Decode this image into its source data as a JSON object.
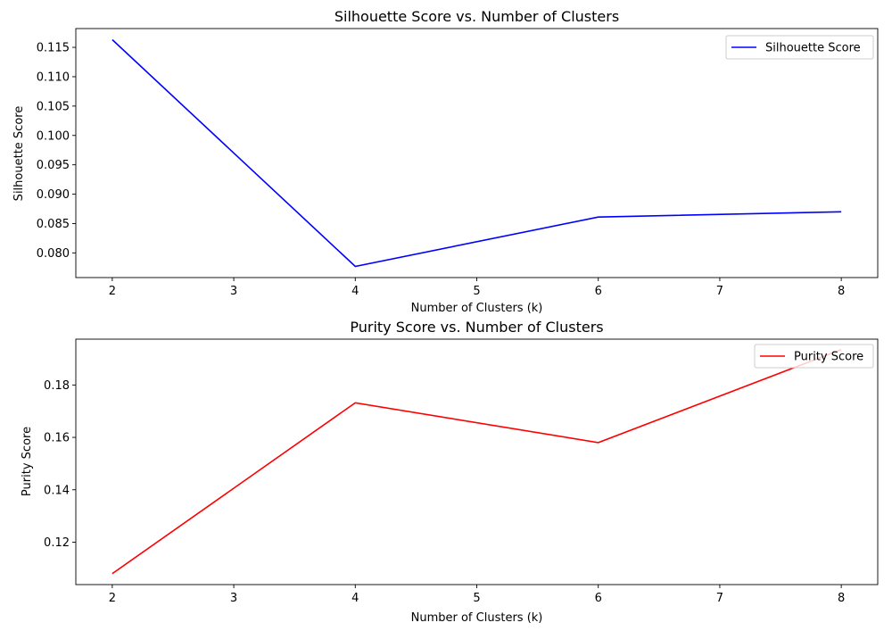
{
  "chart_data": [
    {
      "type": "line",
      "title": "Silhouette Score vs. Number of Clusters",
      "xlabel": "Number of Clusters (k)",
      "ylabel": "Silhouette Score",
      "ylabel_color": "#0000ff",
      "xlim": [
        1.7,
        8.3
      ],
      "ylim": [
        0.0758,
        0.1182
      ],
      "xticks": [
        2,
        3,
        4,
        5,
        6,
        7,
        8
      ],
      "xtick_labels": [
        "2",
        "3",
        "4",
        "5",
        "6",
        "7",
        "8"
      ],
      "yticks": [
        0.08,
        0.085,
        0.09,
        0.095,
        0.1,
        0.105,
        0.11,
        0.115
      ],
      "ytick_labels": [
        "0.080",
        "0.085",
        "0.090",
        "0.095",
        "0.100",
        "0.105",
        "0.110",
        "0.115"
      ],
      "grid": false,
      "legend_position": "top-right",
      "series": [
        {
          "name": "Silhouette Score",
          "color": "#0000ff",
          "x": [
            2,
            4,
            6,
            8
          ],
          "y": [
            0.1163,
            0.0777,
            0.0861,
            0.087
          ]
        }
      ]
    },
    {
      "type": "line",
      "title": "Purity Score vs. Number of Clusters",
      "xlabel": "Number of Clusters (k)",
      "ylabel": "Purity Score",
      "ylabel_color": "#ff0000",
      "xlim": [
        1.7,
        8.3
      ],
      "ylim": [
        0.1038,
        0.1975
      ],
      "xticks": [
        2,
        3,
        4,
        5,
        6,
        7,
        8
      ],
      "xtick_labels": [
        "2",
        "3",
        "4",
        "5",
        "6",
        "7",
        "8"
      ],
      "yticks": [
        0.12,
        0.14,
        0.16,
        0.18
      ],
      "ytick_labels": [
        "0.12",
        "0.14",
        "0.16",
        "0.18"
      ],
      "grid": false,
      "legend_position": "top-right",
      "series": [
        {
          "name": "Purity Score",
          "color": "#ff0000",
          "x": [
            2,
            4,
            6,
            8
          ],
          "y": [
            0.108,
            0.1732,
            0.158,
            0.1935
          ]
        }
      ]
    }
  ]
}
